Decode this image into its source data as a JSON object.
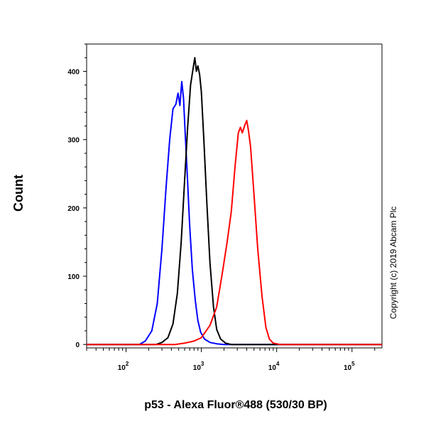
{
  "chart_data": {
    "type": "line",
    "title": "",
    "xlabel": "p53 - Alexa Fluor®488 (530/30 BP)",
    "ylabel": "Count",
    "x_scale": "log",
    "xlim": [
      30,
      250000
    ],
    "ylim": [
      -5,
      440
    ],
    "x_ticks": [
      {
        "base": "10",
        "exp": "2",
        "value": 100
      },
      {
        "base": "10",
        "exp": "3",
        "value": 1000
      },
      {
        "base": "10",
        "exp": "4",
        "value": 10000
      },
      {
        "base": "10",
        "exp": "5",
        "value": 100000
      }
    ],
    "y_ticks": [
      0,
      100,
      200,
      300,
      400
    ],
    "grid": false,
    "legend": "none",
    "series": [
      {
        "color": "#0000ff",
        "x": [
          30,
          150,
          180,
          220,
          260,
          300,
          340,
          380,
          420,
          460,
          490,
          520,
          550,
          580,
          610,
          650,
          700,
          760,
          830,
          900,
          980,
          1100,
          1300,
          1600,
          2000,
          250000
        ],
        "y": [
          0,
          0,
          5,
          20,
          60,
          140,
          230,
          300,
          345,
          352,
          368,
          350,
          385,
          360,
          310,
          250,
          175,
          110,
          65,
          35,
          18,
          8,
          3,
          1,
          0,
          0
        ]
      },
      {
        "color": "#000000",
        "x": [
          30,
          250,
          300,
          360,
          420,
          480,
          540,
          600,
          660,
          720,
          780,
          820,
          860,
          900,
          950,
          1000,
          1080,
          1180,
          1300,
          1450,
          1600,
          1800,
          2100,
          2500,
          3000,
          250000
        ],
        "y": [
          0,
          0,
          3,
          10,
          30,
          75,
          150,
          240,
          320,
          380,
          405,
          420,
          400,
          408,
          395,
          370,
          300,
          210,
          120,
          55,
          22,
          8,
          2,
          0,
          0,
          0
        ]
      },
      {
        "color": "#ff0000",
        "x": [
          30,
          450,
          600,
          800,
          1000,
          1300,
          1600,
          1900,
          2200,
          2500,
          2800,
          3100,
          3300,
          3500,
          3800,
          4000,
          4200,
          4500,
          5000,
          5600,
          6400,
          7200,
          8000,
          9000,
          10000,
          11000,
          250000
        ],
        "y": [
          0,
          0,
          2,
          5,
          10,
          28,
          55,
          105,
          150,
          195,
          260,
          310,
          318,
          310,
          322,
          328,
          315,
          290,
          220,
          140,
          70,
          25,
          8,
          2,
          1,
          0,
          0
        ]
      }
    ],
    "copyright": "Copyright (c) 2019 Abcam Plc"
  }
}
